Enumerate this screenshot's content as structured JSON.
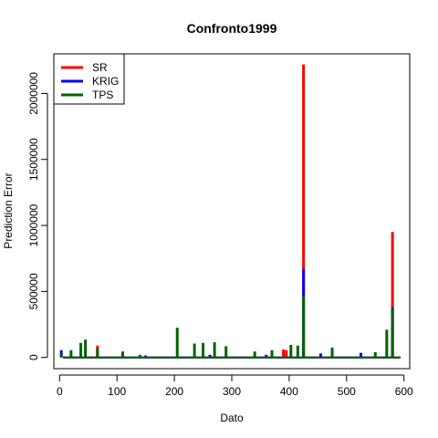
{
  "chart_data": {
    "type": "line",
    "title": "Confronto1999",
    "xlabel": "Dato",
    "ylabel": "Prediction Error",
    "xlim": [
      -10,
      610
    ],
    "ylim": [
      -85000,
      2300000
    ],
    "x_ticks": [
      0,
      100,
      200,
      300,
      400,
      500,
      600
    ],
    "y_ticks": [
      0,
      500000,
      1000000,
      1500000,
      2000000
    ],
    "x_tick_labels": [
      "0",
      "100",
      "200",
      "300",
      "400",
      "500",
      "600"
    ],
    "y_tick_labels": [
      "0",
      "500000",
      "1000000",
      "1500000",
      "2000000"
    ],
    "legend_position": "top-left",
    "grid": false,
    "series": [
      {
        "name": "SR",
        "color": "#ff0000",
        "points": [
          [
            3,
            20000
          ],
          [
            66,
            90000
          ],
          [
            390,
            60000
          ],
          [
            395,
            55000
          ],
          [
            425,
            2220000
          ],
          [
            580,
            950000
          ]
        ]
      },
      {
        "name": "KRIG",
        "color": "#0000ff",
        "points": [
          [
            3,
            55000
          ],
          [
            150,
            15000
          ],
          [
            262,
            20000
          ],
          [
            360,
            20000
          ],
          [
            425,
            670000
          ],
          [
            455,
            30000
          ],
          [
            525,
            35000
          ],
          [
            580,
            380000
          ]
        ]
      },
      {
        "name": "TPS",
        "color": "#006400",
        "points": [
          [
            3,
            25000
          ],
          [
            20,
            55000
          ],
          [
            37,
            110000
          ],
          [
            45,
            135000
          ],
          [
            66,
            70000
          ],
          [
            110,
            45000
          ],
          [
            140,
            20000
          ],
          [
            205,
            225000
          ],
          [
            235,
            105000
          ],
          [
            250,
            110000
          ],
          [
            270,
            115000
          ],
          [
            290,
            85000
          ],
          [
            340,
            45000
          ],
          [
            370,
            55000
          ],
          [
            403,
            95000
          ],
          [
            415,
            90000
          ],
          [
            425,
            470000
          ],
          [
            475,
            75000
          ],
          [
            550,
            40000
          ],
          [
            570,
            210000
          ],
          [
            580,
            370000
          ]
        ]
      }
    ]
  }
}
